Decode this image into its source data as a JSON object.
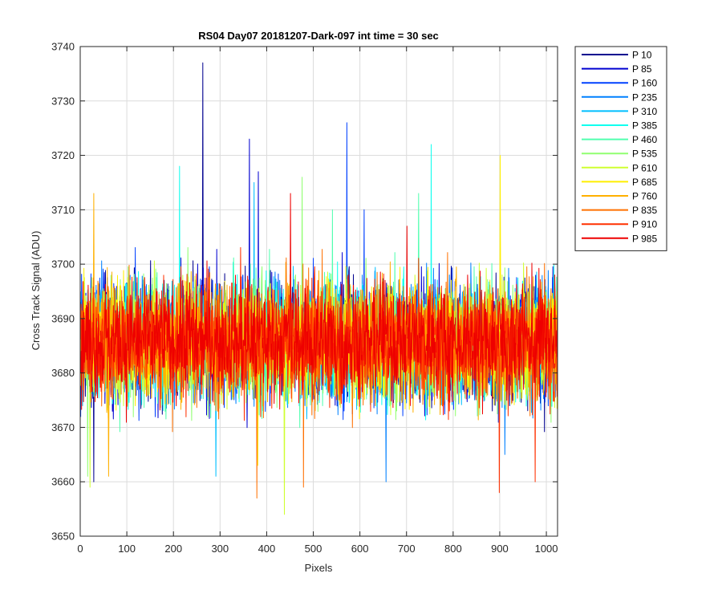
{
  "chart_data": {
    "type": "line",
    "title": "RS04 Day07 20181207-Dark-097 int time = 30 sec",
    "xlabel": "Pixels",
    "ylabel": "Cross Track Signal (ADU)",
    "xlim": [
      0,
      1024
    ],
    "ylim": [
      3650,
      3740
    ],
    "x_ticks": [
      0,
      100,
      200,
      300,
      400,
      500,
      600,
      700,
      800,
      900,
      1000
    ],
    "y_ticks": [
      3650,
      3660,
      3670,
      3680,
      3690,
      3700,
      3710,
      3720,
      3730,
      3740
    ],
    "grid": true,
    "legend_position": "outside-top-right",
    "n_points_per_series": 1024,
    "noise_summary": {
      "mean": 3686,
      "typical_range": [
        3668,
        3706
      ],
      "note_extremes": "values per series sampled, plotted noise-like around the mean"
    },
    "series": [
      {
        "name": "P 10",
        "color": "#00008f",
        "mean": 3686,
        "spikes": [
          [
            262,
            3737
          ],
          [
            28,
            3660
          ]
        ]
      },
      {
        "name": "P 85",
        "color": "#0000d0",
        "mean": 3686,
        "spikes": [
          [
            362,
            3723
          ],
          [
            381,
            3717
          ]
        ]
      },
      {
        "name": "P 160",
        "color": "#0040ff",
        "mean": 3686,
        "spikes": [
          [
            571,
            3726
          ],
          [
            608,
            3710
          ]
        ]
      },
      {
        "name": "P 235",
        "color": "#0080ff",
        "mean": 3686,
        "spikes": [
          [
            655,
            3660
          ],
          [
            910,
            3665
          ]
        ]
      },
      {
        "name": "P 310",
        "color": "#00bfff",
        "mean": 3686,
        "spikes": [
          [
            290,
            3661
          ],
          [
            372,
            3715
          ]
        ]
      },
      {
        "name": "P 385",
        "color": "#10ffef",
        "mean": 3686,
        "spikes": [
          [
            752,
            3722
          ],
          [
            212,
            3718
          ]
        ]
      },
      {
        "name": "P 460",
        "color": "#50ffaf",
        "mean": 3686,
        "spikes": [
          [
            725,
            3713
          ],
          [
            540,
            3710
          ]
        ]
      },
      {
        "name": "P 535",
        "color": "#90ff70",
        "mean": 3686,
        "spikes": [
          [
            475,
            3716
          ],
          [
            15,
            3661
          ]
        ]
      },
      {
        "name": "P 610",
        "color": "#cfff30",
        "mean": 3686,
        "spikes": [
          [
            437,
            3654
          ],
          [
            20,
            3659
          ]
        ]
      },
      {
        "name": "P 685",
        "color": "#ffef00",
        "mean": 3686,
        "spikes": [
          [
            900,
            3720
          ],
          [
            380,
            3663
          ]
        ]
      },
      {
        "name": "P 760",
        "color": "#ffb000",
        "mean": 3686,
        "spikes": [
          [
            28,
            3713
          ],
          [
            60,
            3661
          ]
        ]
      },
      {
        "name": "P 835",
        "color": "#ff7000",
        "mean": 3686,
        "spikes": [
          [
            378,
            3657
          ],
          [
            478,
            3659
          ]
        ]
      },
      {
        "name": "P 910",
        "color": "#ff3000",
        "mean": 3686,
        "spikes": [
          [
            898,
            3658
          ],
          [
            975,
            3660
          ]
        ]
      },
      {
        "name": "P 985",
        "color": "#ee0000",
        "mean": 3686,
        "spikes": [
          [
            450,
            3713
          ],
          [
            700,
            3707
          ]
        ]
      }
    ]
  }
}
